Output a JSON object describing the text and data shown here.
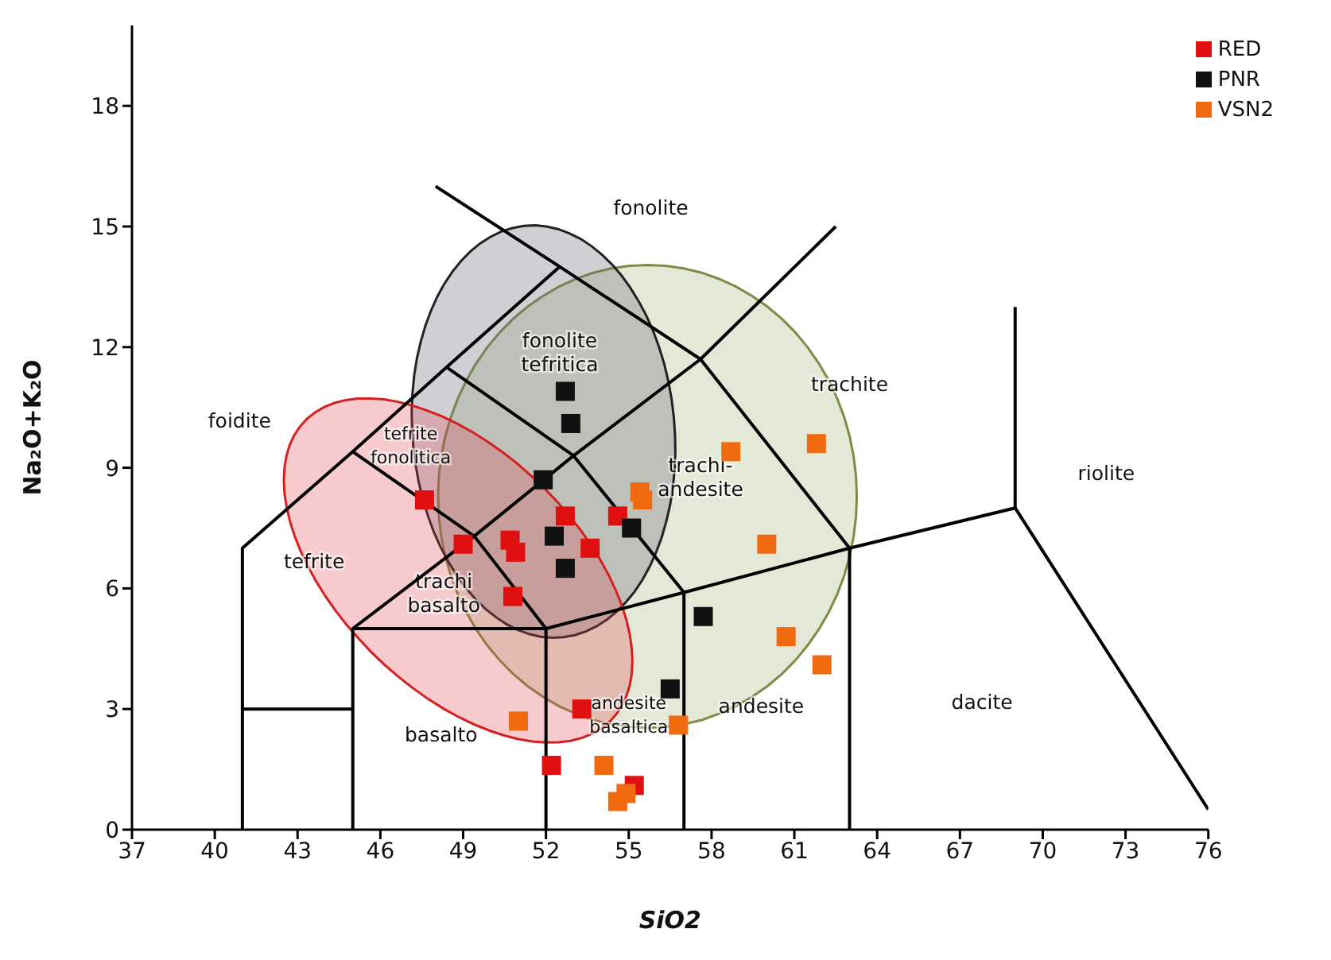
{
  "chart_data": {
    "type": "scatter",
    "xlabel": "SiO2",
    "ylabel": "Na₂O+K₂O",
    "xlim": [
      37,
      76
    ],
    "ylim": [
      0,
      20
    ],
    "xticks": [
      37,
      40,
      43,
      46,
      49,
      52,
      55,
      58,
      61,
      64,
      67,
      70,
      73,
      76
    ],
    "yticks": [
      0,
      3,
      6,
      9,
      12,
      15,
      18
    ],
    "legend": "top right",
    "marker": "square",
    "series": [
      {
        "type": "line",
        "marker": "none",
        "color": "#000000",
        "x": [
          41,
          41,
          45,
          48.4,
          52.5,
          48
        ],
        "values": [
          0,
          7,
          9.4,
          11.5,
          14,
          16
        ]
      },
      {
        "type": "line",
        "marker": "none",
        "color": "#000000",
        "x": [
          41,
          45
        ],
        "values": [
          3,
          3
        ]
      },
      {
        "type": "line",
        "marker": "none",
        "color": "#000000",
        "x": [
          45,
          45,
          52,
          52
        ],
        "values": [
          0,
          5,
          5,
          0
        ]
      },
      {
        "type": "line",
        "marker": "none",
        "color": "#000000",
        "x": [
          52,
          57,
          63,
          69,
          76
        ],
        "values": [
          5,
          5.9,
          7,
          8,
          0.5
        ]
      },
      {
        "type": "line",
        "marker": "none",
        "color": "#000000",
        "x": [
          57,
          57
        ],
        "values": [
          0,
          5.9
        ]
      },
      {
        "type": "line",
        "marker": "none",
        "color": "#000000",
        "x": [
          63,
          63
        ],
        "values": [
          0,
          7
        ]
      },
      {
        "type": "line",
        "marker": "none",
        "color": "#000000",
        "x": [
          69,
          69
        ],
        "values": [
          8,
          13
        ]
      },
      {
        "type": "line",
        "marker": "none",
        "color": "#000000",
        "x": [
          45,
          49.4,
          52
        ],
        "values": [
          9.4,
          7.3,
          5
        ]
      },
      {
        "type": "line",
        "marker": "none",
        "color": "#000000",
        "x": [
          45,
          49.4,
          53,
          57.6,
          62.5
        ],
        "values": [
          5,
          7.3,
          9.3,
          11.7,
          15
        ]
      },
      {
        "type": "line",
        "marker": "none",
        "color": "#000000",
        "x": [
          48.4,
          53,
          57
        ],
        "values": [
          11.5,
          9.3,
          5.9
        ]
      },
      {
        "type": "line",
        "marker": "none",
        "color": "#000000",
        "x": [
          52.5,
          57.6,
          63
        ],
        "values": [
          14,
          11.7,
          7
        ]
      },
      {
        "name": "RED",
        "color": "#e01010",
        "x": [
          47.6,
          49.0,
          50.7,
          50.9,
          50.8,
          52.7,
          53.6,
          54.6,
          53.3,
          52.2,
          55.2
        ],
        "values": [
          8.2,
          7.1,
          7.2,
          6.9,
          5.8,
          7.8,
          7.0,
          7.8,
          3.0,
          1.6,
          1.1
        ]
      },
      {
        "name": "PNR",
        "color": "#111111",
        "x": [
          52.7,
          52.9,
          51.9,
          52.3,
          52.7,
          55.1,
          57.7,
          56.5
        ],
        "values": [
          10.9,
          10.1,
          8.7,
          7.3,
          6.5,
          7.5,
          5.3,
          3.5
        ]
      },
      {
        "name": "VSN2",
        "color": "#f26a10",
        "x": [
          55.4,
          55.5,
          58.7,
          61.8,
          60.0,
          60.7,
          62.0,
          51.0,
          56.8,
          54.1,
          54.9,
          54.6
        ],
        "values": [
          8.4,
          8.2,
          9.4,
          9.6,
          7.1,
          4.8,
          4.1,
          2.7,
          2.6,
          1.6,
          0.9,
          0.7
        ]
      }
    ],
    "annotations": [
      "fonolite",
      "fonolite\ntefritica",
      "foidite",
      "tefrite\nfonolitica",
      "tefrite",
      "trachi\nbasalto",
      "trachi-\nandesite",
      "trachite",
      "riolite",
      "andesite\nbasaltica",
      "basalto",
      "andesite",
      "dacite"
    ]
  }
}
